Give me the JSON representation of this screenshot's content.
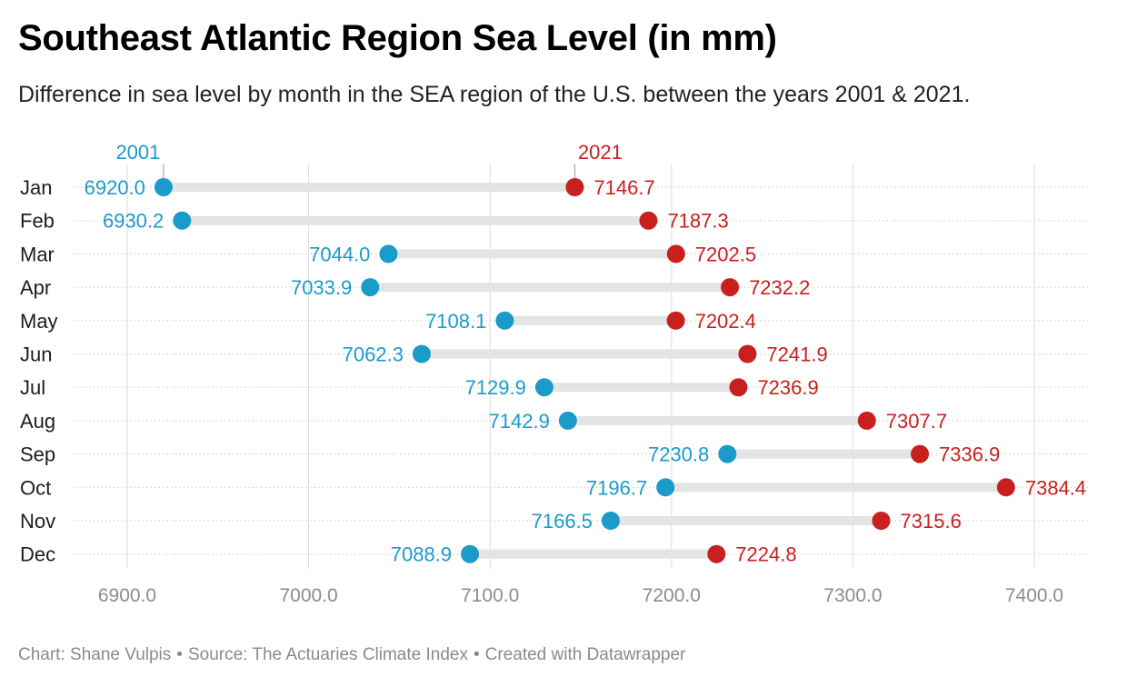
{
  "title": "Southeast Atlantic Region Sea Level (in mm)",
  "subtitle": "Difference in sea level by month in the SEA region of the U.S. between the years 2001 & 2021.",
  "footer": {
    "chart_by": "Chart: Shane Vulpis",
    "source": "Source: The Actuaries Climate Index",
    "created": "Created with Datawrapper",
    "separator": "•"
  },
  "colors": {
    "series_2001": "#1a9bc9",
    "series_2021": "#c8201e",
    "connector": "#e4e4e4",
    "grid": "#dcdcdc",
    "tick": "#8c8c8c"
  },
  "chart_data": {
    "type": "dot-range",
    "categories": [
      "Jan",
      "Feb",
      "Mar",
      "Apr",
      "May",
      "Jun",
      "Jul",
      "Aug",
      "Sep",
      "Oct",
      "Nov",
      "Dec"
    ],
    "series": [
      {
        "name": "2001",
        "values": [
          6920.0,
          6930.2,
          7044.0,
          7033.9,
          7108.1,
          7062.3,
          7129.9,
          7142.9,
          7230.8,
          7196.7,
          7166.5,
          7088.9
        ],
        "labels": [
          "6920.0",
          "6930.2",
          "7044.0",
          "7033.9",
          "7108.1",
          "7062.3",
          "7129.9",
          "7142.9",
          "7230.8",
          "7196.7",
          "7166.5",
          "7088.9"
        ]
      },
      {
        "name": "2021",
        "values": [
          7146.7,
          7187.3,
          7202.5,
          7232.2,
          7202.4,
          7241.9,
          7236.9,
          7307.7,
          7336.9,
          7384.4,
          7315.6,
          7224.8
        ],
        "labels": [
          "7146.7",
          "7187.3",
          "7202.5",
          "7232.2",
          "7202.4",
          "7241.9",
          "7236.9",
          "7307.7",
          "7336.9",
          "7384.4",
          "7315.6",
          "7224.8"
        ]
      }
    ],
    "xlim": [
      6870,
      7430
    ],
    "xticks": [
      6900,
      7000,
      7100,
      7200,
      7300,
      7400
    ],
    "xtick_labels": [
      "6900.0",
      "7000.0",
      "7100.0",
      "7200.0",
      "7300.0",
      "7400.0"
    ],
    "xlabel": "",
    "ylabel": "",
    "grid": true,
    "legend": "inline labels above the first row"
  }
}
